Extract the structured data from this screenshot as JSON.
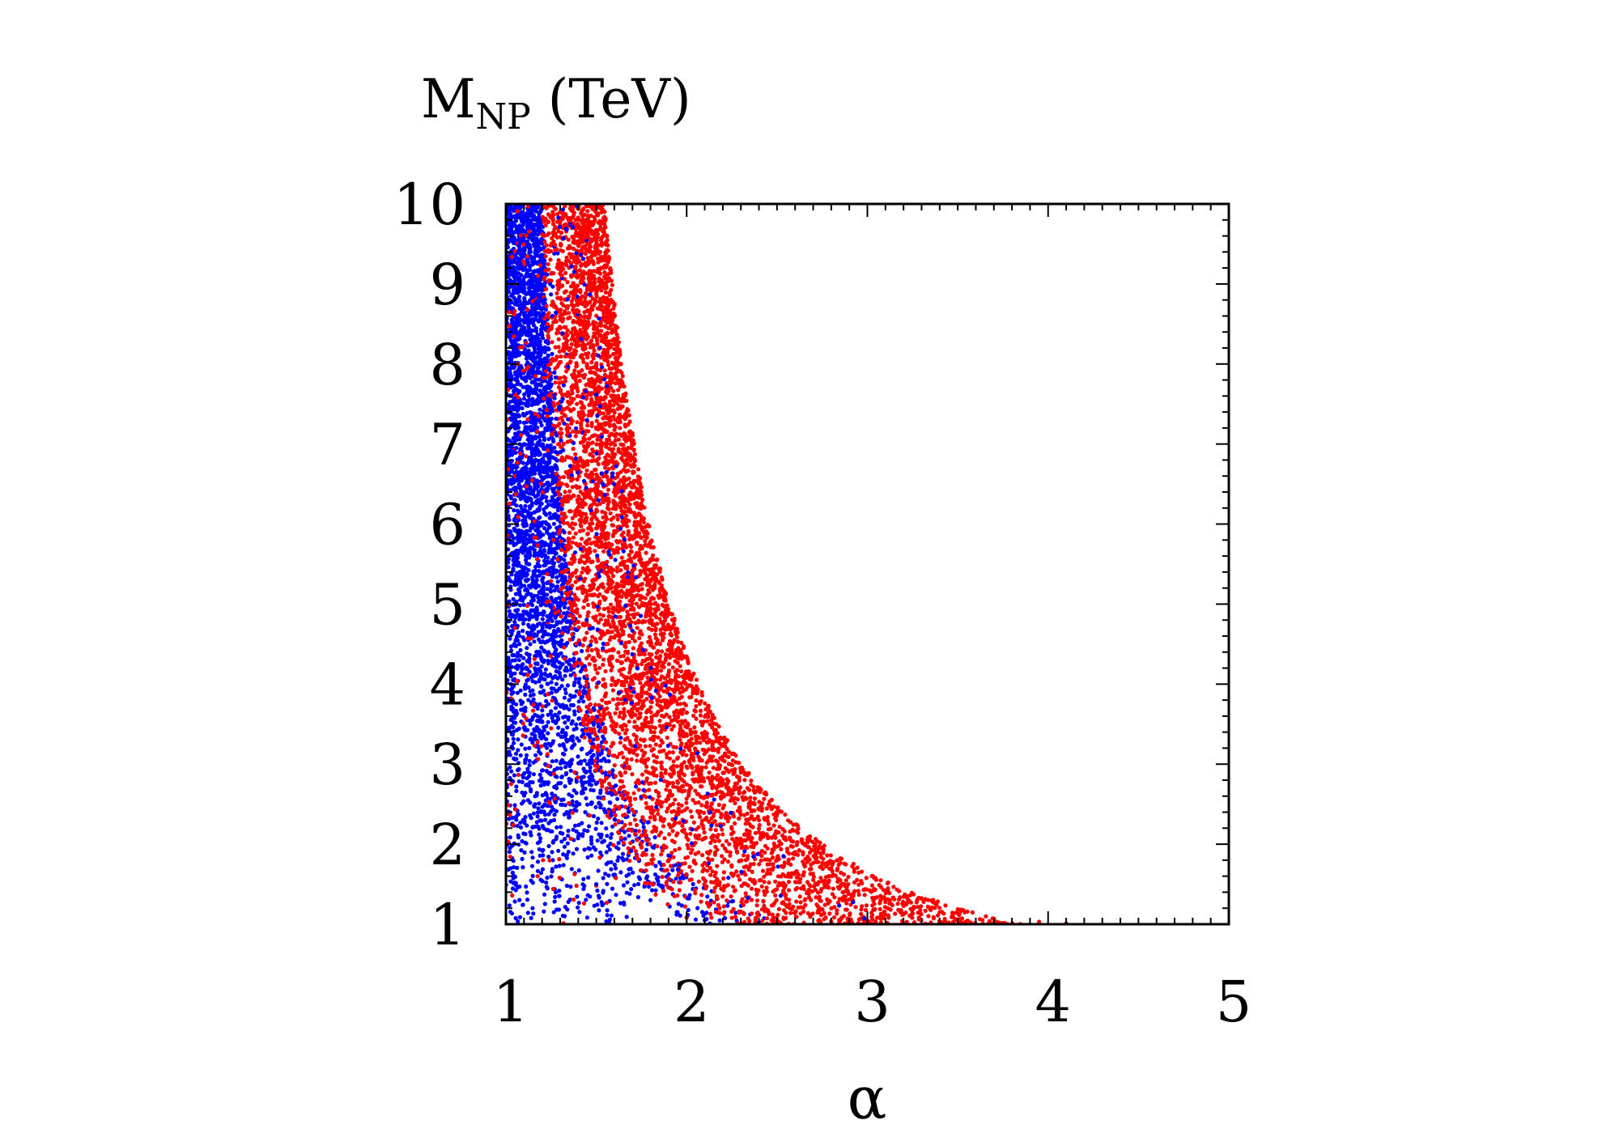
{
  "chart_data": {
    "type": "scatter",
    "title": "",
    "ylabel": {
      "main": "M",
      "sub": "NP",
      "unit": " (TeV)"
    },
    "xlabel": "α",
    "xlim": [
      1,
      5
    ],
    "ylim": [
      1,
      10
    ],
    "x_ticks": [
      "1",
      "2",
      "3",
      "4",
      "5"
    ],
    "y_ticks": [
      "1",
      "2",
      "3",
      "4",
      "5",
      "6",
      "7",
      "8",
      "9",
      "10"
    ],
    "grid": false,
    "legend": "none",
    "series": [
      {
        "color": "#0000ff",
        "region": "dense band at small α: α from 1 to about 1 + 1.6/M, filling M from 1 to 10 TeV",
        "points": [
          [
            1.02,
            9.8
          ],
          [
            1.05,
            9.2
          ],
          [
            1.08,
            8.7
          ],
          [
            1.12,
            8.1
          ],
          [
            1.03,
            7.6
          ],
          [
            1.1,
            7.0
          ],
          [
            1.18,
            6.4
          ],
          [
            1.06,
            6.0
          ],
          [
            1.22,
            5.5
          ],
          [
            1.14,
            5.0
          ],
          [
            1.3,
            4.6
          ],
          [
            1.09,
            4.2
          ],
          [
            1.35,
            3.8
          ],
          [
            1.2,
            3.4
          ],
          [
            1.45,
            3.0
          ],
          [
            1.28,
            2.7
          ],
          [
            1.55,
            2.4
          ],
          [
            1.4,
            2.1
          ],
          [
            1.65,
            1.8
          ],
          [
            1.5,
            1.5
          ],
          [
            1.8,
            1.3
          ],
          [
            1.95,
            1.15
          ],
          [
            2.1,
            1.05
          ],
          [
            2.4,
            1.02
          ]
        ]
      },
      {
        "color": "#ff0000",
        "region": "band hugging the boundary M ≈ 4.7/(α−0.95)^1.45, spanning α ≈ 1.1 to 4.1",
        "points": [
          [
            1.3,
            9.9
          ],
          [
            1.45,
            9.5
          ],
          [
            1.52,
            8.5
          ],
          [
            1.55,
            7.5
          ],
          [
            1.62,
            6.5
          ],
          [
            1.72,
            5.6
          ],
          [
            1.8,
            4.8
          ],
          [
            1.9,
            4.1
          ],
          [
            2.05,
            3.4
          ],
          [
            2.2,
            2.8
          ],
          [
            2.4,
            2.3
          ],
          [
            2.6,
            1.9
          ],
          [
            2.85,
            1.55
          ],
          [
            3.1,
            1.3
          ],
          [
            3.4,
            1.15
          ],
          [
            3.7,
            1.07
          ],
          [
            3.95,
            1.03
          ],
          [
            4.1,
            1.01
          ]
        ]
      }
    ]
  }
}
